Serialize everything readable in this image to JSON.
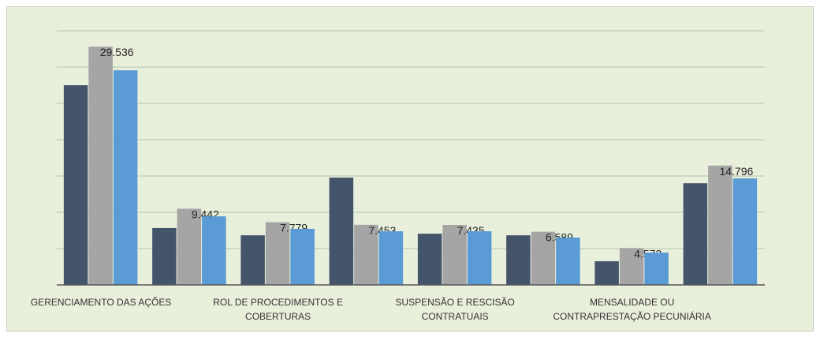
{
  "chart_data": {
    "type": "bar",
    "categories": [
      "GERENCIAMENTO DAS AÇÕES",
      null,
      "ROL DE PROCEDIMENTOS E COBERTURAS",
      null,
      "SUSPENSÃO E RESCISÃO CONTRATUAIS",
      null,
      "MENSALIDADE OU CONTRAPRESTAÇÃO PECUNIÁRIA",
      null
    ],
    "series": [
      {
        "color": "#44546a",
        "values": [
          24750,
          7050,
          6150,
          13300,
          6350,
          6150,
          2930,
          12600
        ]
      },
      {
        "color": "#a5a5a5",
        "values": [
          29536,
          9442,
          7779,
          7453,
          7435,
          6589,
          4573,
          14796
        ],
        "value_labels": [
          "29.536",
          "9.442",
          "7.779",
          "7.453",
          "7.435",
          "6.589",
          "4.573",
          "14.796"
        ]
      },
      {
        "color": "#5b9bd5",
        "values": [
          26600,
          8500,
          6950,
          6650,
          6650,
          5870,
          4000,
          13200
        ]
      }
    ],
    "ylim": [
      0,
      31500
    ],
    "grid": true
  }
}
